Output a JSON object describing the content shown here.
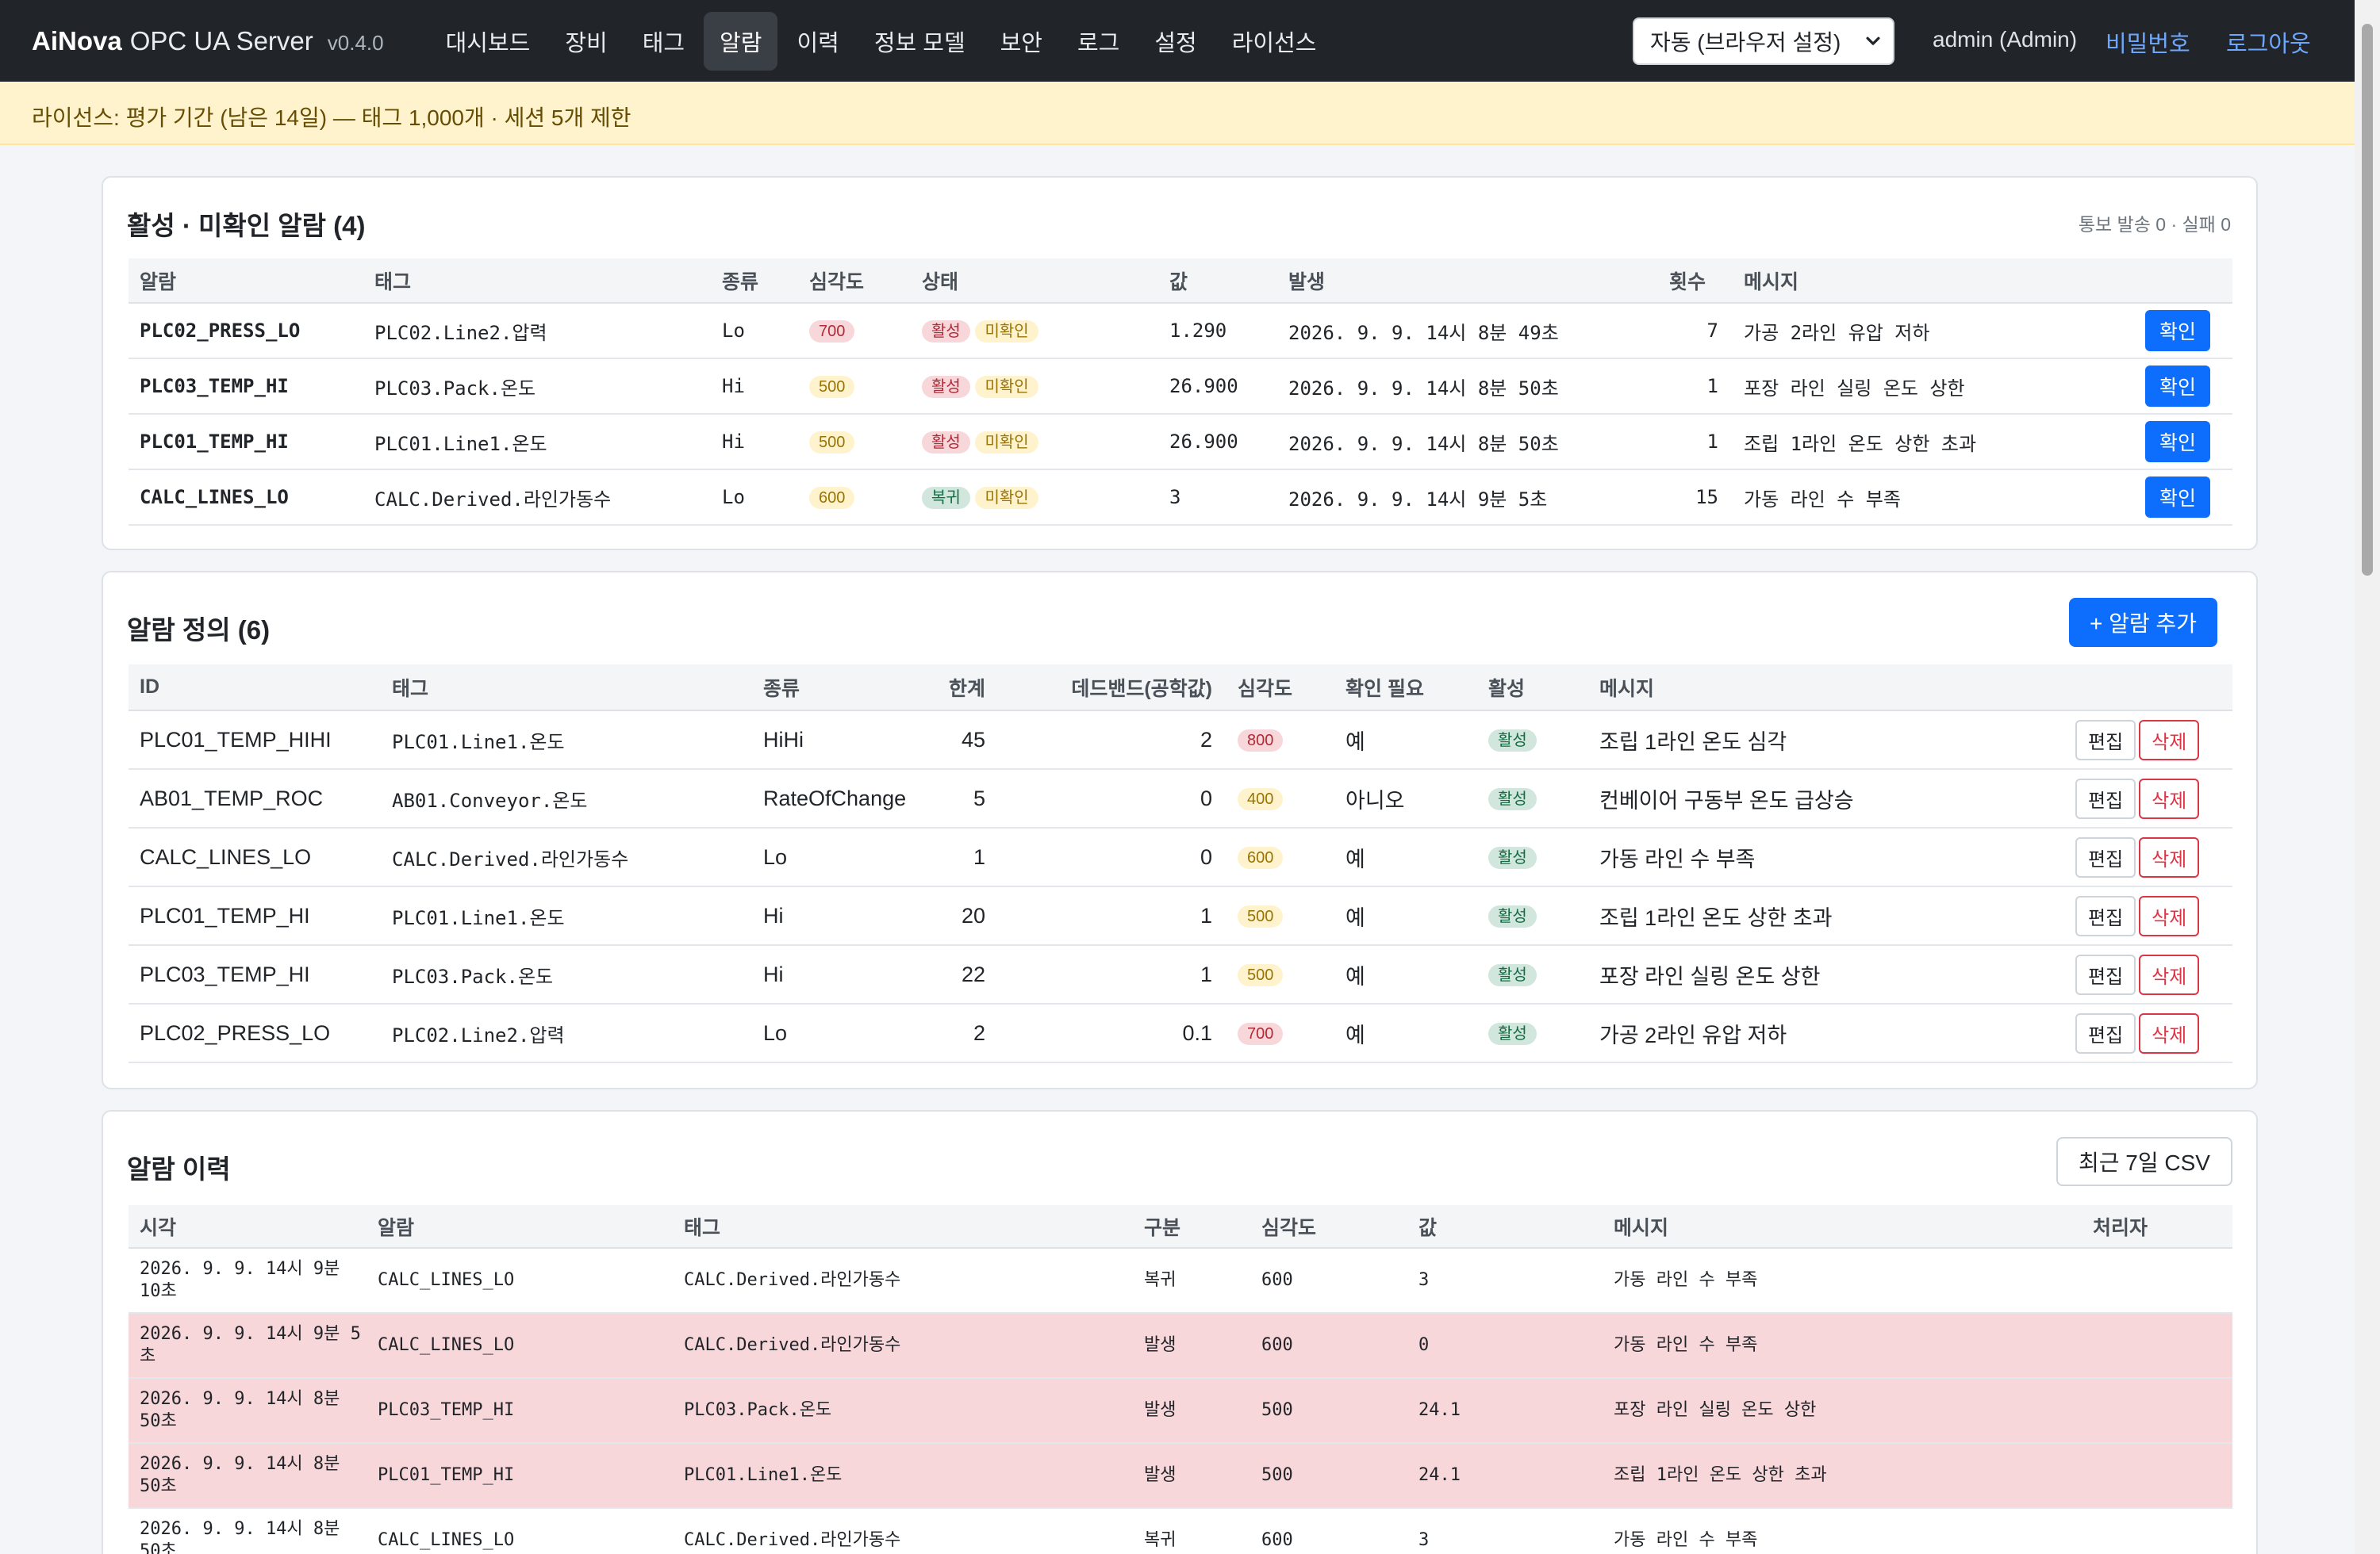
{
  "app": {
    "brand_bold": "AiNova",
    "brand_rest": "OPC UA Server",
    "version": "v0.4.0"
  },
  "nav": [
    {
      "label": "대시보드",
      "active": false
    },
    {
      "label": "장비",
      "active": false
    },
    {
      "label": "태그",
      "active": false
    },
    {
      "label": "알람",
      "active": true
    },
    {
      "label": "이력",
      "active": false
    },
    {
      "label": "정보 모델",
      "active": false
    },
    {
      "label": "보안",
      "active": false
    },
    {
      "label": "로그",
      "active": false
    },
    {
      "label": "설정",
      "active": false
    },
    {
      "label": "라이선스",
      "active": false
    }
  ],
  "header": {
    "theme_select": "자동 (브라우저 설정)",
    "user": "admin (Admin)",
    "password_link": "비밀번호",
    "logout_link": "로그아웃"
  },
  "license_banner": "라이선스: 평가 기간 (남은 14일) — 태그 1,000개 · 세션 5개 제한",
  "active_alarms": {
    "title": "활성 · 미확인 알람 (4)",
    "notify_stats": "통보 발송 0 · 실패 0",
    "columns": [
      "알람",
      "태그",
      "종류",
      "심각도",
      "상태",
      "값",
      "발생",
      "횟수",
      "메시지",
      ""
    ],
    "ack_label": "확인",
    "rows": [
      {
        "alarm": "PLC02_PRESS_LO",
        "tag": "PLC02.Line2.압력",
        "kind": "Lo",
        "severity": "700",
        "state": "활성",
        "ack_state": "미확인",
        "value": "1.290",
        "occurred": "2026. 9. 9. 14시 8분 49초",
        "count": "7",
        "message": "가공 2라인 유압 저하"
      },
      {
        "alarm": "PLC03_TEMP_HI",
        "tag": "PLC03.Pack.온도",
        "kind": "Hi",
        "severity": "500",
        "state": "활성",
        "ack_state": "미확인",
        "value": "26.900",
        "occurred": "2026. 9. 9. 14시 8분 50초",
        "count": "1",
        "message": "포장 라인 실링 온도 상한"
      },
      {
        "alarm": "PLC01_TEMP_HI",
        "tag": "PLC01.Line1.온도",
        "kind": "Hi",
        "severity": "500",
        "state": "활성",
        "ack_state": "미확인",
        "value": "26.900",
        "occurred": "2026. 9. 9. 14시 8분 50초",
        "count": "1",
        "message": "조립 1라인 온도 상한 초과"
      },
      {
        "alarm": "CALC_LINES_LO",
        "tag": "CALC.Derived.라인가동수",
        "kind": "Lo",
        "severity": "600",
        "state": "복귀",
        "ack_state": "미확인",
        "value": "3",
        "occurred": "2026. 9. 9. 14시 9분 5초",
        "count": "15",
        "message": "가동 라인 수 부족"
      }
    ]
  },
  "alarm_definitions": {
    "title": "알람 정의 (6)",
    "add_button": "+ 알람 추가",
    "columns": [
      "ID",
      "태그",
      "종류",
      "한계",
      "데드밴드(공학값)",
      "심각도",
      "확인 필요",
      "활성",
      "메시지",
      ""
    ],
    "edit_label": "편집",
    "delete_label": "삭제",
    "rows": [
      {
        "id": "PLC01_TEMP_HIHI",
        "tag": "PLC01.Line1.온도",
        "kind": "HiHi",
        "limit": "45",
        "deadband": "2",
        "severity": "800",
        "ack_required": "예",
        "enabled": "활성",
        "message": "조립 1라인 온도 심각"
      },
      {
        "id": "AB01_TEMP_ROC",
        "tag": "AB01.Conveyor.온도",
        "kind": "RateOfChange",
        "limit": "5",
        "deadband": "0",
        "severity": "400",
        "ack_required": "아니오",
        "enabled": "활성",
        "message": "컨베이어 구동부 온도 급상승"
      },
      {
        "id": "CALC_LINES_LO",
        "tag": "CALC.Derived.라인가동수",
        "kind": "Lo",
        "limit": "1",
        "deadband": "0",
        "severity": "600",
        "ack_required": "예",
        "enabled": "활성",
        "message": "가동 라인 수 부족"
      },
      {
        "id": "PLC01_TEMP_HI",
        "tag": "PLC01.Line1.온도",
        "kind": "Hi",
        "limit": "20",
        "deadband": "1",
        "severity": "500",
        "ack_required": "예",
        "enabled": "활성",
        "message": "조립 1라인 온도 상한 초과"
      },
      {
        "id": "PLC03_TEMP_HI",
        "tag": "PLC03.Pack.온도",
        "kind": "Hi",
        "limit": "22",
        "deadband": "1",
        "severity": "500",
        "ack_required": "예",
        "enabled": "활성",
        "message": "포장 라인 실링 온도 상한"
      },
      {
        "id": "PLC02_PRESS_LO",
        "tag": "PLC02.Line2.압력",
        "kind": "Lo",
        "limit": "2",
        "deadband": "0.1",
        "severity": "700",
        "ack_required": "예",
        "enabled": "활성",
        "message": "가공 2라인 유압 저하"
      }
    ]
  },
  "alarm_history": {
    "title": "알람 이력",
    "csv_button": "최근 7일 CSV",
    "columns": [
      "시각",
      "알람",
      "태그",
      "구분",
      "심각도",
      "값",
      "메시지",
      "처리자"
    ],
    "rows": [
      {
        "time": "2026. 9. 9. 14시 9분 10초",
        "alarm": "CALC_LINES_LO",
        "tag": "CALC.Derived.라인가동수",
        "type": "복귀",
        "severity": "600",
        "value": "3",
        "message": "가동 라인 수 부족",
        "handler": "",
        "highlight": false
      },
      {
        "time": "2026. 9. 9. 14시 9분 5초",
        "alarm": "CALC_LINES_LO",
        "tag": "CALC.Derived.라인가동수",
        "type": "발생",
        "severity": "600",
        "value": "0",
        "message": "가동 라인 수 부족",
        "handler": "",
        "highlight": true
      },
      {
        "time": "2026. 9. 9. 14시 8분 50초",
        "alarm": "PLC03_TEMP_HI",
        "tag": "PLC03.Pack.온도",
        "type": "발생",
        "severity": "500",
        "value": "24.1",
        "message": "포장 라인 실링 온도 상한",
        "handler": "",
        "highlight": true
      },
      {
        "time": "2026. 9. 9. 14시 8분 50초",
        "alarm": "PLC01_TEMP_HI",
        "tag": "PLC01.Line1.온도",
        "type": "발생",
        "severity": "500",
        "value": "24.1",
        "message": "조립 1라인 온도 상한 초과",
        "handler": "",
        "highlight": true
      },
      {
        "time": "2026. 9. 9. 14시 8분 50초",
        "alarm": "CALC_LINES_LO",
        "tag": "CALC.Derived.라인가동수",
        "type": "복귀",
        "severity": "600",
        "value": "3",
        "message": "가동 라인 수 부족",
        "handler": "",
        "highlight": false
      }
    ]
  },
  "colors": {
    "nav_bg": "#212529",
    "primary": "#0d6efd",
    "danger": "#dc3545",
    "banner_bg": "#fff3cd",
    "row_danger": "#f8d7da"
  }
}
